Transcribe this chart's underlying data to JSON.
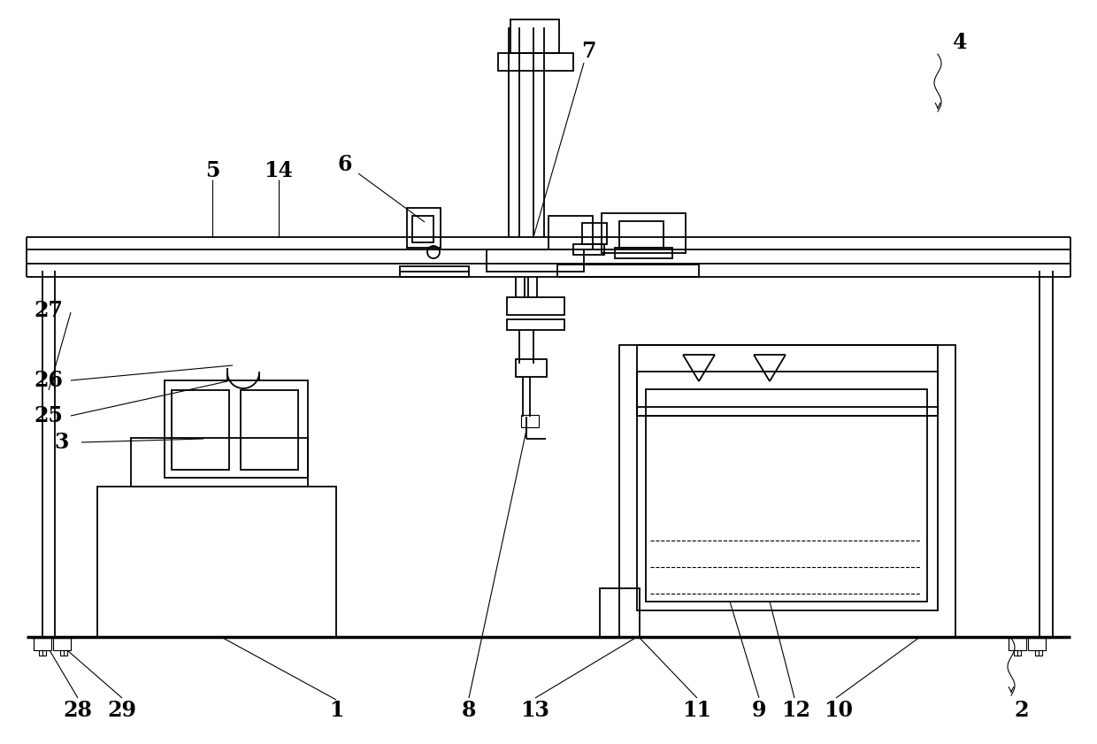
{
  "bg_color": "#ffffff",
  "lw_n": 1.3,
  "lw_t": 0.8,
  "lw_k": 2.5,
  "fs": 17,
  "figsize": [
    12.4,
    8.41
  ],
  "dpi": 100
}
